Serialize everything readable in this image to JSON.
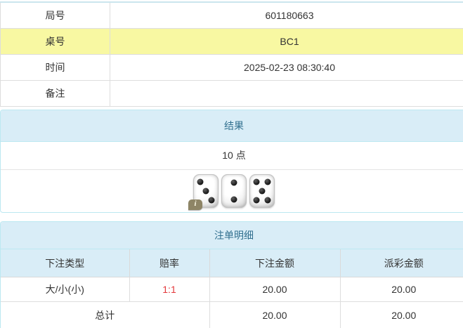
{
  "info_table": {
    "rows": [
      {
        "label": "局号",
        "value": "601180663",
        "highlight": false
      },
      {
        "label": "桌号",
        "value": "BC1",
        "highlight": true
      },
      {
        "label": "时间",
        "value": "2025-02-23 08:30:40",
        "highlight": false
      },
      {
        "label": "备注",
        "value": "",
        "highlight": false
      }
    ]
  },
  "result_panel": {
    "title": "结果",
    "points": "10 点",
    "dice": [
      3,
      2,
      5
    ],
    "info_icon_glyph": "i"
  },
  "bets_panel": {
    "title": "注单明细",
    "columns": [
      "下注类型",
      "赔率",
      "下注金额",
      "派彩金额"
    ],
    "rows": [
      {
        "type": "大/小(小)",
        "odds": "1:1",
        "bet": "20.00",
        "payout": "20.00"
      }
    ],
    "total": {
      "label": "总计",
      "bet": "20.00",
      "payout": "20.00"
    }
  },
  "colors": {
    "highlight_yellow": "#f8f8a2",
    "panel_border": "#bce8f1",
    "panel_heading_bg": "#d9edf7",
    "panel_heading_text": "#31708f",
    "odds_red": "#e4393c",
    "grid_border": "#dddddd"
  }
}
